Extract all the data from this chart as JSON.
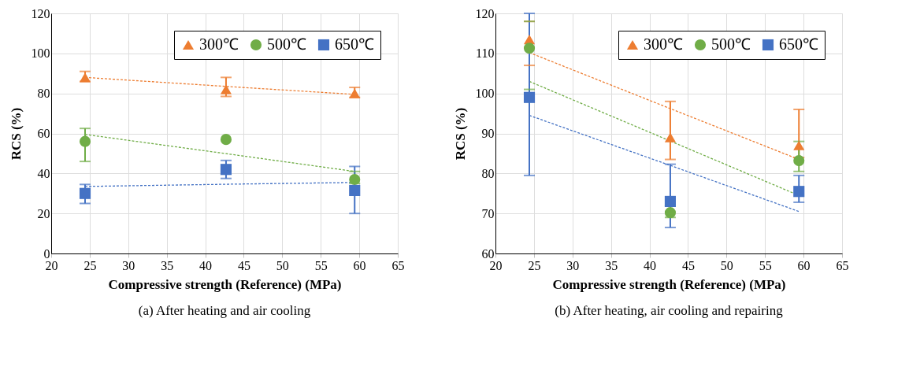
{
  "chart_data": [
    {
      "type": "scatter",
      "title": "(a) After heating and air cooling",
      "xlabel": "Compressive strength (Reference) (MPa)",
      "ylabel": "RCS (%)",
      "xlim": [
        20,
        65
      ],
      "xticks": [
        20,
        25,
        30,
        35,
        40,
        45,
        50,
        55,
        60,
        65
      ],
      "ylim": [
        0,
        120
      ],
      "yticks": [
        0,
        20,
        40,
        60,
        80,
        100,
        120
      ],
      "grid": true,
      "legend": "top right",
      "x": [
        24.4,
        42.7,
        59.4
      ],
      "series": [
        {
          "name": "300℃",
          "color": "#ed7d31",
          "marker": "triangle",
          "values": [
            88,
            82,
            80
          ],
          "errors": [
            [
              86,
              91
            ],
            [
              78.5,
              88
            ],
            [
              78,
              83
            ]
          ]
        },
        {
          "name": "500℃",
          "color": "#70ad47",
          "marker": "circle",
          "values": [
            56,
            57,
            37
          ],
          "errors": [
            [
              46,
              62.5
            ],
            null,
            [
              35,
              41
            ]
          ]
        },
        {
          "name": "650℃",
          "color": "#4472c4",
          "marker": "square",
          "values": [
            30,
            42,
            31.5
          ],
          "errors": [
            [
              25,
              34.5
            ],
            [
              37.5,
              46.5
            ],
            [
              20,
              43.5
            ]
          ]
        },
        {
          "type": "line",
          "color": "#ed7d31",
          "line_style": "dashed",
          "values": [
            88,
            83.5,
            79.5
          ]
        },
        {
          "type": "line",
          "color": "#70ad47",
          "line_style": "dashed",
          "values": [
            59.5,
            49.9,
            41
          ]
        },
        {
          "type": "line",
          "color": "#4472c4",
          "line_style": "dashed",
          "values": [
            33.5,
            34.6,
            35.5
          ]
        }
      ]
    },
    {
      "type": "scatter",
      "title": "(b) After heating, air cooling and repairing",
      "xlabel": "Compressive strength (Reference) (MPa)",
      "ylabel": "RCS (%)",
      "xlim": [
        20,
        65
      ],
      "xticks": [
        20,
        25,
        30,
        35,
        40,
        45,
        50,
        55,
        60,
        65
      ],
      "ylim": [
        60,
        120
      ],
      "yticks": [
        60,
        70,
        80,
        90,
        100,
        110,
        120
      ],
      "grid": true,
      "legend": "top right",
      "x": [
        24.4,
        42.7,
        59.4
      ],
      "series": [
        {
          "name": "300℃",
          "color": "#ed7d31",
          "marker": "triangle",
          "values": [
            113.5,
            89,
            87
          ],
          "errors": [
            [
              107,
              118
            ],
            [
              83.5,
              98
            ],
            [
              84,
              96
            ]
          ]
        },
        {
          "name": "500℃",
          "color": "#70ad47",
          "marker": "circle",
          "values": [
            111.3,
            70.2,
            83.2
          ],
          "errors": [
            [
              101,
              118
            ],
            [
              69,
              72
            ],
            [
              80.5,
              88
            ]
          ]
        },
        {
          "name": "650℃",
          "color": "#4472c4",
          "marker": "square",
          "values": [
            99,
            73,
            75.5
          ],
          "errors": [
            [
              79.5,
              120
            ],
            [
              66.5,
              82.3
            ],
            [
              72.8,
              79.5
            ]
          ]
        },
        {
          "type": "line",
          "color": "#ed7d31",
          "line_style": "dashed",
          "values": [
            110.2,
            96.2,
            83.5
          ]
        },
        {
          "type": "line",
          "color": "#70ad47",
          "line_style": "dashed",
          "values": [
            103,
            88.1,
            74.5
          ]
        },
        {
          "type": "line",
          "color": "#4472c4",
          "line_style": "dashed",
          "values": [
            94.5,
            82,
            70.5
          ]
        }
      ]
    }
  ]
}
